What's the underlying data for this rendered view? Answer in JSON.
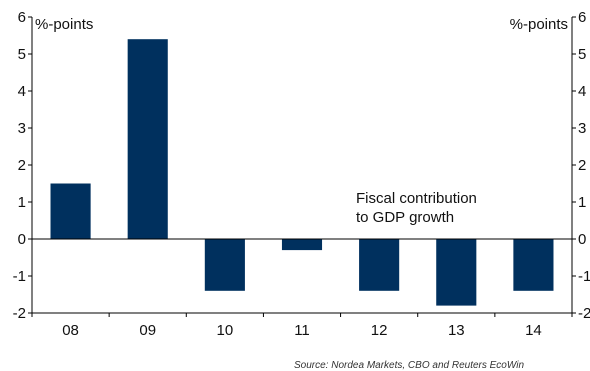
{
  "chart_data": {
    "type": "bar",
    "title": "",
    "y_unit_label_left": "%-points",
    "y_unit_label_right": "%-points",
    "categories": [
      "08",
      "09",
      "10",
      "11",
      "12",
      "13",
      "14"
    ],
    "series": [
      {
        "values": [
          1.5,
          5.4,
          -1.4,
          -0.3,
          -1.4,
          -1.8,
          -1.4
        ]
      }
    ],
    "ylim": [
      -2,
      6
    ],
    "yticks": [
      -2,
      -1,
      0,
      1,
      2,
      3,
      4,
      5,
      6
    ],
    "grid": false,
    "bar_color": "#00305e",
    "annotation": [
      "Fiscal contribution",
      "to GDP growth"
    ],
    "source": "Source: Nordea Markets, CBO and Reuters EcoWin"
  }
}
